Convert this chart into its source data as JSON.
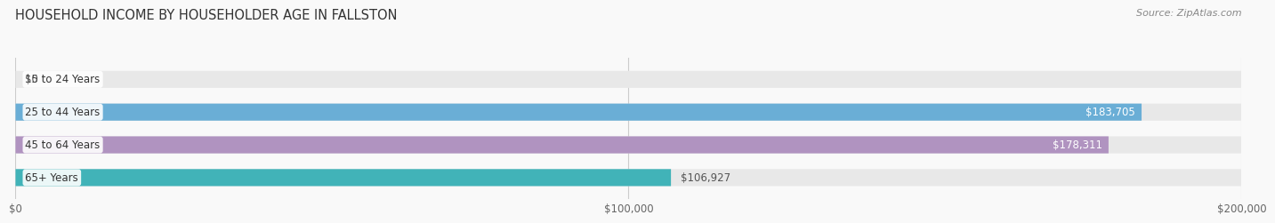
{
  "title": "HOUSEHOLD INCOME BY HOUSEHOLDER AGE IN FALLSTON",
  "source": "Source: ZipAtlas.com",
  "categories": [
    "15 to 24 Years",
    "25 to 44 Years",
    "45 to 64 Years",
    "65+ Years"
  ],
  "values": [
    0,
    183705,
    178311,
    106927
  ],
  "bar_colors": [
    "#e8918a",
    "#6aaed6",
    "#b093c0",
    "#41b3b8"
  ],
  "bar_bg_color": "#e8e8e8",
  "label_texts": [
    "$0",
    "$183,705",
    "$178,311",
    "$106,927"
  ],
  "xlim": [
    0,
    200000
  ],
  "xticks": [
    0,
    100000,
    200000
  ],
  "xtick_labels": [
    "$0",
    "$100,000",
    "$200,000"
  ],
  "background_color": "#f9f9f9",
  "title_fontsize": 10.5,
  "source_fontsize": 8,
  "bar_height": 0.52
}
